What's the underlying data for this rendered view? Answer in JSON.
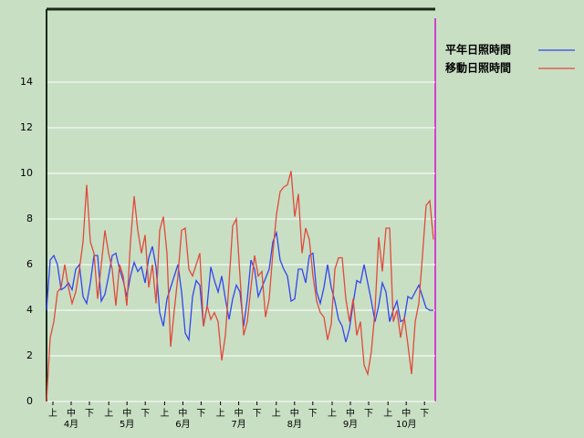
{
  "chart_data": {
    "type": "line",
    "x": [
      0,
      2,
      4,
      6,
      8,
      10,
      12,
      14,
      16,
      18,
      20,
      22,
      24,
      26,
      28,
      30,
      32,
      34,
      36,
      38,
      40,
      42,
      44,
      46,
      48,
      50,
      52,
      54,
      56,
      58,
      60,
      62,
      64,
      66,
      68,
      70,
      72,
      74,
      76,
      78,
      80,
      82,
      84,
      86,
      88,
      90,
      92,
      94,
      96,
      98,
      100,
      102,
      104,
      106,
      108,
      110,
      112,
      114,
      116,
      118,
      120,
      122,
      124,
      126,
      128,
      130,
      132,
      134,
      136,
      138,
      140,
      142,
      144,
      146,
      148,
      150,
      152,
      154,
      156,
      158,
      160,
      162,
      164,
      166,
      168,
      170,
      172,
      174,
      176,
      178,
      180,
      182,
      184,
      186,
      188,
      190,
      192,
      194,
      196,
      198,
      200,
      202,
      204,
      206,
      208,
      210,
      212
    ],
    "series": [
      {
        "name": "平年日照時間",
        "color": "#3344ee",
        "values": [
          4.0,
          6.2,
          6.4,
          6.0,
          4.9,
          5.0,
          5.2,
          4.9,
          5.8,
          6.0,
          4.6,
          4.3,
          5.2,
          6.4,
          6.4,
          4.4,
          4.7,
          5.5,
          6.4,
          6.5,
          5.8,
          5.3,
          4.6,
          5.5,
          6.1,
          5.7,
          5.9,
          5.2,
          6.3,
          6.8,
          5.9,
          3.9,
          3.3,
          4.5,
          5.0,
          5.5,
          6.0,
          4.8,
          3.0,
          2.7,
          4.6,
          5.3,
          5.1,
          3.3,
          4.2,
          5.9,
          5.3,
          4.8,
          5.5,
          4.5,
          3.6,
          4.5,
          5.1,
          4.8,
          3.3,
          4.5,
          6.2,
          5.8,
          4.6,
          5.0,
          5.4,
          5.8,
          7.0,
          7.4,
          6.2,
          5.8,
          5.5,
          4.4,
          4.5,
          5.8,
          5.8,
          5.2,
          6.4,
          6.5,
          4.8,
          4.3,
          5.0,
          6.0,
          5.0,
          4.4,
          3.6,
          3.3,
          2.6,
          3.2,
          4.3,
          5.3,
          5.2,
          6.0,
          5.2,
          4.4,
          3.5,
          4.2,
          5.2,
          4.8,
          3.5,
          4.0,
          4.4,
          3.5,
          3.6,
          4.6,
          4.5,
          4.8,
          5.1,
          4.6,
          4.1,
          4.0,
          4.0
        ]
      },
      {
        "name": "移動日照時間",
        "color": "#e04a3a",
        "values": [
          0,
          2.8,
          3.5,
          4.8,
          5.0,
          6.0,
          5.0,
          4.3,
          4.8,
          5.8,
          7.0,
          9.5,
          7.0,
          6.5,
          4.5,
          6.0,
          7.5,
          6.5,
          5.8,
          4.2,
          6.0,
          5.5,
          4.2,
          7.0,
          9.0,
          7.5,
          6.5,
          7.3,
          5.0,
          6.0,
          4.3,
          7.5,
          8.1,
          6.5,
          2.4,
          4.0,
          5.5,
          7.5,
          7.6,
          5.8,
          5.5,
          6.0,
          6.5,
          3.3,
          4.2,
          3.6,
          3.9,
          3.5,
          1.8,
          2.9,
          5.2,
          7.7,
          8.0,
          5.5,
          2.9,
          3.5,
          5.0,
          6.4,
          5.5,
          5.7,
          3.7,
          4.5,
          6.5,
          8.2,
          9.2,
          9.4,
          9.5,
          10.1,
          8.1,
          9.1,
          6.5,
          7.6,
          7.1,
          5.5,
          4.4,
          3.9,
          3.7,
          2.7,
          3.4,
          5.8,
          6.3,
          6.3,
          4.5,
          3.5,
          4.5,
          2.9,
          3.5,
          1.6,
          1.2,
          2.2,
          4.0,
          7.2,
          5.7,
          7.6,
          7.6,
          3.5,
          4.0,
          2.8,
          3.7,
          2.5,
          1.2,
          3.5,
          4.3,
          6.4,
          8.6,
          8.8,
          7.1
        ]
      }
    ],
    "xlim": [
      0,
      213
    ],
    "xticks": [
      {
        "value": 3.5,
        "label": "上"
      },
      {
        "value": 13.5,
        "label": "中"
      },
      {
        "value": 23.5,
        "label": "下"
      },
      {
        "value": 34.1,
        "label": "上"
      },
      {
        "value": 44.1,
        "label": "中"
      },
      {
        "value": 54.1,
        "label": "下"
      },
      {
        "value": 64.7,
        "label": "上"
      },
      {
        "value": 74.7,
        "label": "中"
      },
      {
        "value": 84.7,
        "label": "下"
      },
      {
        "value": 95.3,
        "label": "上"
      },
      {
        "value": 105.3,
        "label": "中"
      },
      {
        "value": 115.3,
        "label": "下"
      },
      {
        "value": 125.9,
        "label": "上"
      },
      {
        "value": 135.9,
        "label": "中"
      },
      {
        "value": 145.9,
        "label": "下"
      },
      {
        "value": 156.5,
        "label": "上"
      },
      {
        "value": 166.5,
        "label": "中"
      },
      {
        "value": 176.5,
        "label": "下"
      },
      {
        "value": 187.1,
        "label": "上"
      },
      {
        "value": 197.1,
        "label": "中"
      },
      {
        "value": 207.1,
        "label": "下"
      }
    ],
    "month_labels": [
      {
        "value": 13.5,
        "label": "4月"
      },
      {
        "value": 44.1,
        "label": "5月"
      },
      {
        "value": 74.7,
        "label": "6月"
      },
      {
        "value": 105.3,
        "label": "7月"
      },
      {
        "value": 135.9,
        "label": "8月"
      },
      {
        "value": 166.5,
        "label": "9月"
      },
      {
        "value": 197.1,
        "label": "10月"
      }
    ],
    "ylim": [
      0,
      17.2
    ],
    "yticks": [
      0,
      2,
      4,
      6,
      8,
      10,
      12,
      14
    ],
    "grid": true
  }
}
